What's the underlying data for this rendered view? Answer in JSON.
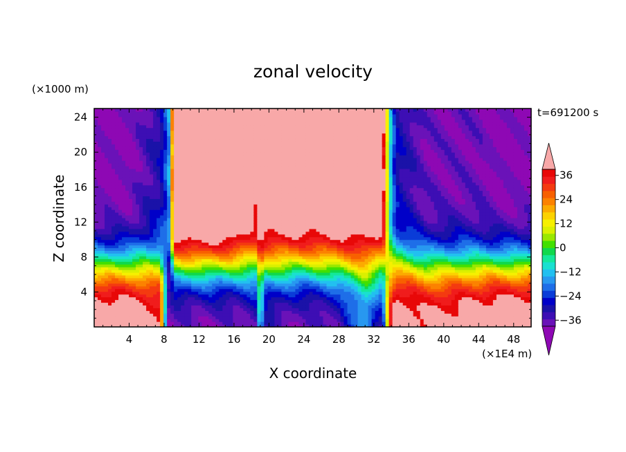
{
  "chart_data": {
    "type": "heatmap",
    "title": "zonal velocity",
    "time_label": "t=691200 s",
    "xlabel": "X coordinate",
    "ylabel": "Z coordinate",
    "x_unit": "(×1E4 m)",
    "y_unit": "(×1000 m)",
    "xlim": [
      0,
      50
    ],
    "ylim": [
      0,
      25
    ],
    "x_ticks": [
      4,
      8,
      12,
      16,
      20,
      24,
      28,
      32,
      36,
      40,
      44,
      48
    ],
    "y_ticks": [
      4,
      8,
      12,
      16,
      20,
      24
    ],
    "colorbar": {
      "min": -42,
      "max": 42,
      "interval": 3,
      "ticks": [
        36,
        24,
        12,
        0,
        -12,
        -24,
        -36
      ],
      "extend": "both"
    },
    "colors": [
      "#8e08b4",
      "#6a12b8",
      "#3d0eb4",
      "#1a12a8",
      "#0000c8",
      "#0a3cd8",
      "#1e6ee8",
      "#2898f0",
      "#22c0f0",
      "#1ae0d0",
      "#14e89a",
      "#10d84c",
      "#42e000",
      "#9ae800",
      "#daf000",
      "#f6f000",
      "#fcd200",
      "#fcaa00",
      "#fc8200",
      "#f86000",
      "#f43a10",
      "#f01c1c",
      "#e80808",
      "#f8a8a8"
    ],
    "profiles": [
      {
        "x": 0,
        "vsurf": 36,
        "vtop": -40
      },
      {
        "x": 4,
        "vsurf": 35,
        "vtop": -40
      },
      {
        "x": 7.5,
        "vsurf": 30,
        "vtop": -32
      },
      {
        "x": 8.5,
        "vsurf": -38,
        "vtop": -22
      },
      {
        "x": 9.3,
        "vsurf": -40,
        "vtop": 40
      },
      {
        "x": 12,
        "vsurf": -40,
        "vtop": 42
      },
      {
        "x": 16,
        "vsurf": -40,
        "vtop": 40
      },
      {
        "x": 18.5,
        "vsurf": -36,
        "vtop": 30
      },
      {
        "x": 19,
        "vsurf": -12,
        "vtop": 34
      },
      {
        "x": 19.5,
        "vsurf": -36,
        "vtop": 36
      },
      {
        "x": 24,
        "vsurf": -40,
        "vtop": 36
      },
      {
        "x": 28,
        "vsurf": -36,
        "vtop": 37
      },
      {
        "x": 31,
        "vsurf": -20,
        "vtop": 36
      },
      {
        "x": 33,
        "vsurf": -34,
        "vtop": 34
      },
      {
        "x": 33.8,
        "vsurf": 20,
        "vtop": -12
      },
      {
        "x": 34.5,
        "vsurf": 36,
        "vtop": -30
      },
      {
        "x": 38,
        "vsurf": 30,
        "vtop": -38
      },
      {
        "x": 44,
        "vsurf": 34,
        "vtop": -38
      },
      {
        "x": 46,
        "vsurf": 36,
        "vtop": -40
      },
      {
        "x": 50,
        "vsurf": 36,
        "vtop": -40
      }
    ]
  }
}
